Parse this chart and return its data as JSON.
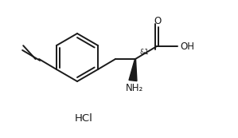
{
  "bg_color": "#ffffff",
  "line_color": "#1a1a1a",
  "line_width": 1.4,
  "font_size_label": 8.5,
  "font_size_stereo": 6.0,
  "font_size_hcl": 9.5,
  "hcl_text": "HCl",
  "stereo_label": "&1",
  "o_label": "O",
  "oh_label": "OH",
  "nh2_label": "NH₂"
}
